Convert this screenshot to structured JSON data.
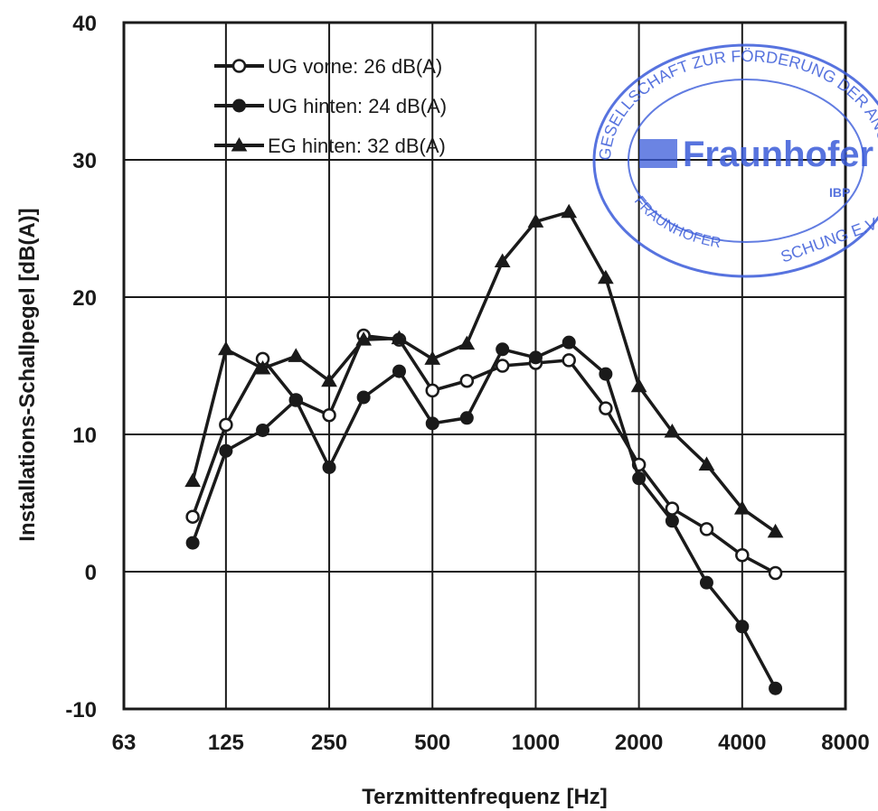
{
  "chart_data": {
    "type": "line",
    "xlabel": "Terzmittenfrequenz [Hz]",
    "ylabel": "Installations-Schallpegel [dB(A)]",
    "x_scale": "log2",
    "xlim": [
      63,
      8000
    ],
    "ylim": [
      -10,
      40
    ],
    "x_ticks": [
      "63",
      "125",
      "250",
      "500",
      "1000",
      "2000",
      "4000",
      "8000"
    ],
    "y_ticks": [
      "-10",
      "0",
      "10",
      "20",
      "30",
      "40"
    ],
    "grid": true,
    "legend_position": "top-left",
    "x": [
      100,
      125,
      160,
      200,
      250,
      315,
      400,
      500,
      630,
      800,
      1000,
      1250,
      1600,
      2000,
      2500,
      3150,
      4000,
      5000
    ],
    "series": [
      {
        "name": "UG vorne: 26 dB(A)",
        "marker": "open-circle",
        "values": [
          4.0,
          10.7,
          15.5,
          12.5,
          11.4,
          17.2,
          16.9,
          13.2,
          13.9,
          15.0,
          15.2,
          15.4,
          11.9,
          7.8,
          4.6,
          3.1,
          1.2,
          -0.1
        ]
      },
      {
        "name": "UG hinten: 24 dB(A)",
        "marker": "filled-circle",
        "values": [
          2.1,
          8.8,
          10.3,
          12.5,
          7.6,
          12.7,
          14.6,
          10.8,
          11.2,
          16.2,
          15.6,
          16.7,
          14.4,
          6.8,
          3.7,
          -0.8,
          -4.0,
          -8.5
        ]
      },
      {
        "name": "EG hinten: 32 dB(A)",
        "marker": "filled-triangle",
        "values": [
          6.6,
          16.2,
          14.8,
          15.7,
          13.9,
          16.9,
          17.0,
          15.5,
          16.6,
          22.6,
          25.5,
          26.2,
          21.4,
          13.5,
          10.2,
          7.8,
          4.6,
          2.9
        ]
      }
    ]
  },
  "stamp": {
    "top_arc_text": "GESELLSCHAFT ZUR FÖRDERUNG DER ANGEWANDTEN",
    "bottom_arc_text": "FRAUNHOFER",
    "bottom_right_text": "SCHUNG E.V.",
    "logo_text": "Fraunhofer",
    "sub_text": "IBP",
    "color": "#3a5bd9"
  },
  "colors": {
    "line": "#1a1a1a",
    "grid": "#1a1a1a",
    "background": "#ffffff"
  }
}
